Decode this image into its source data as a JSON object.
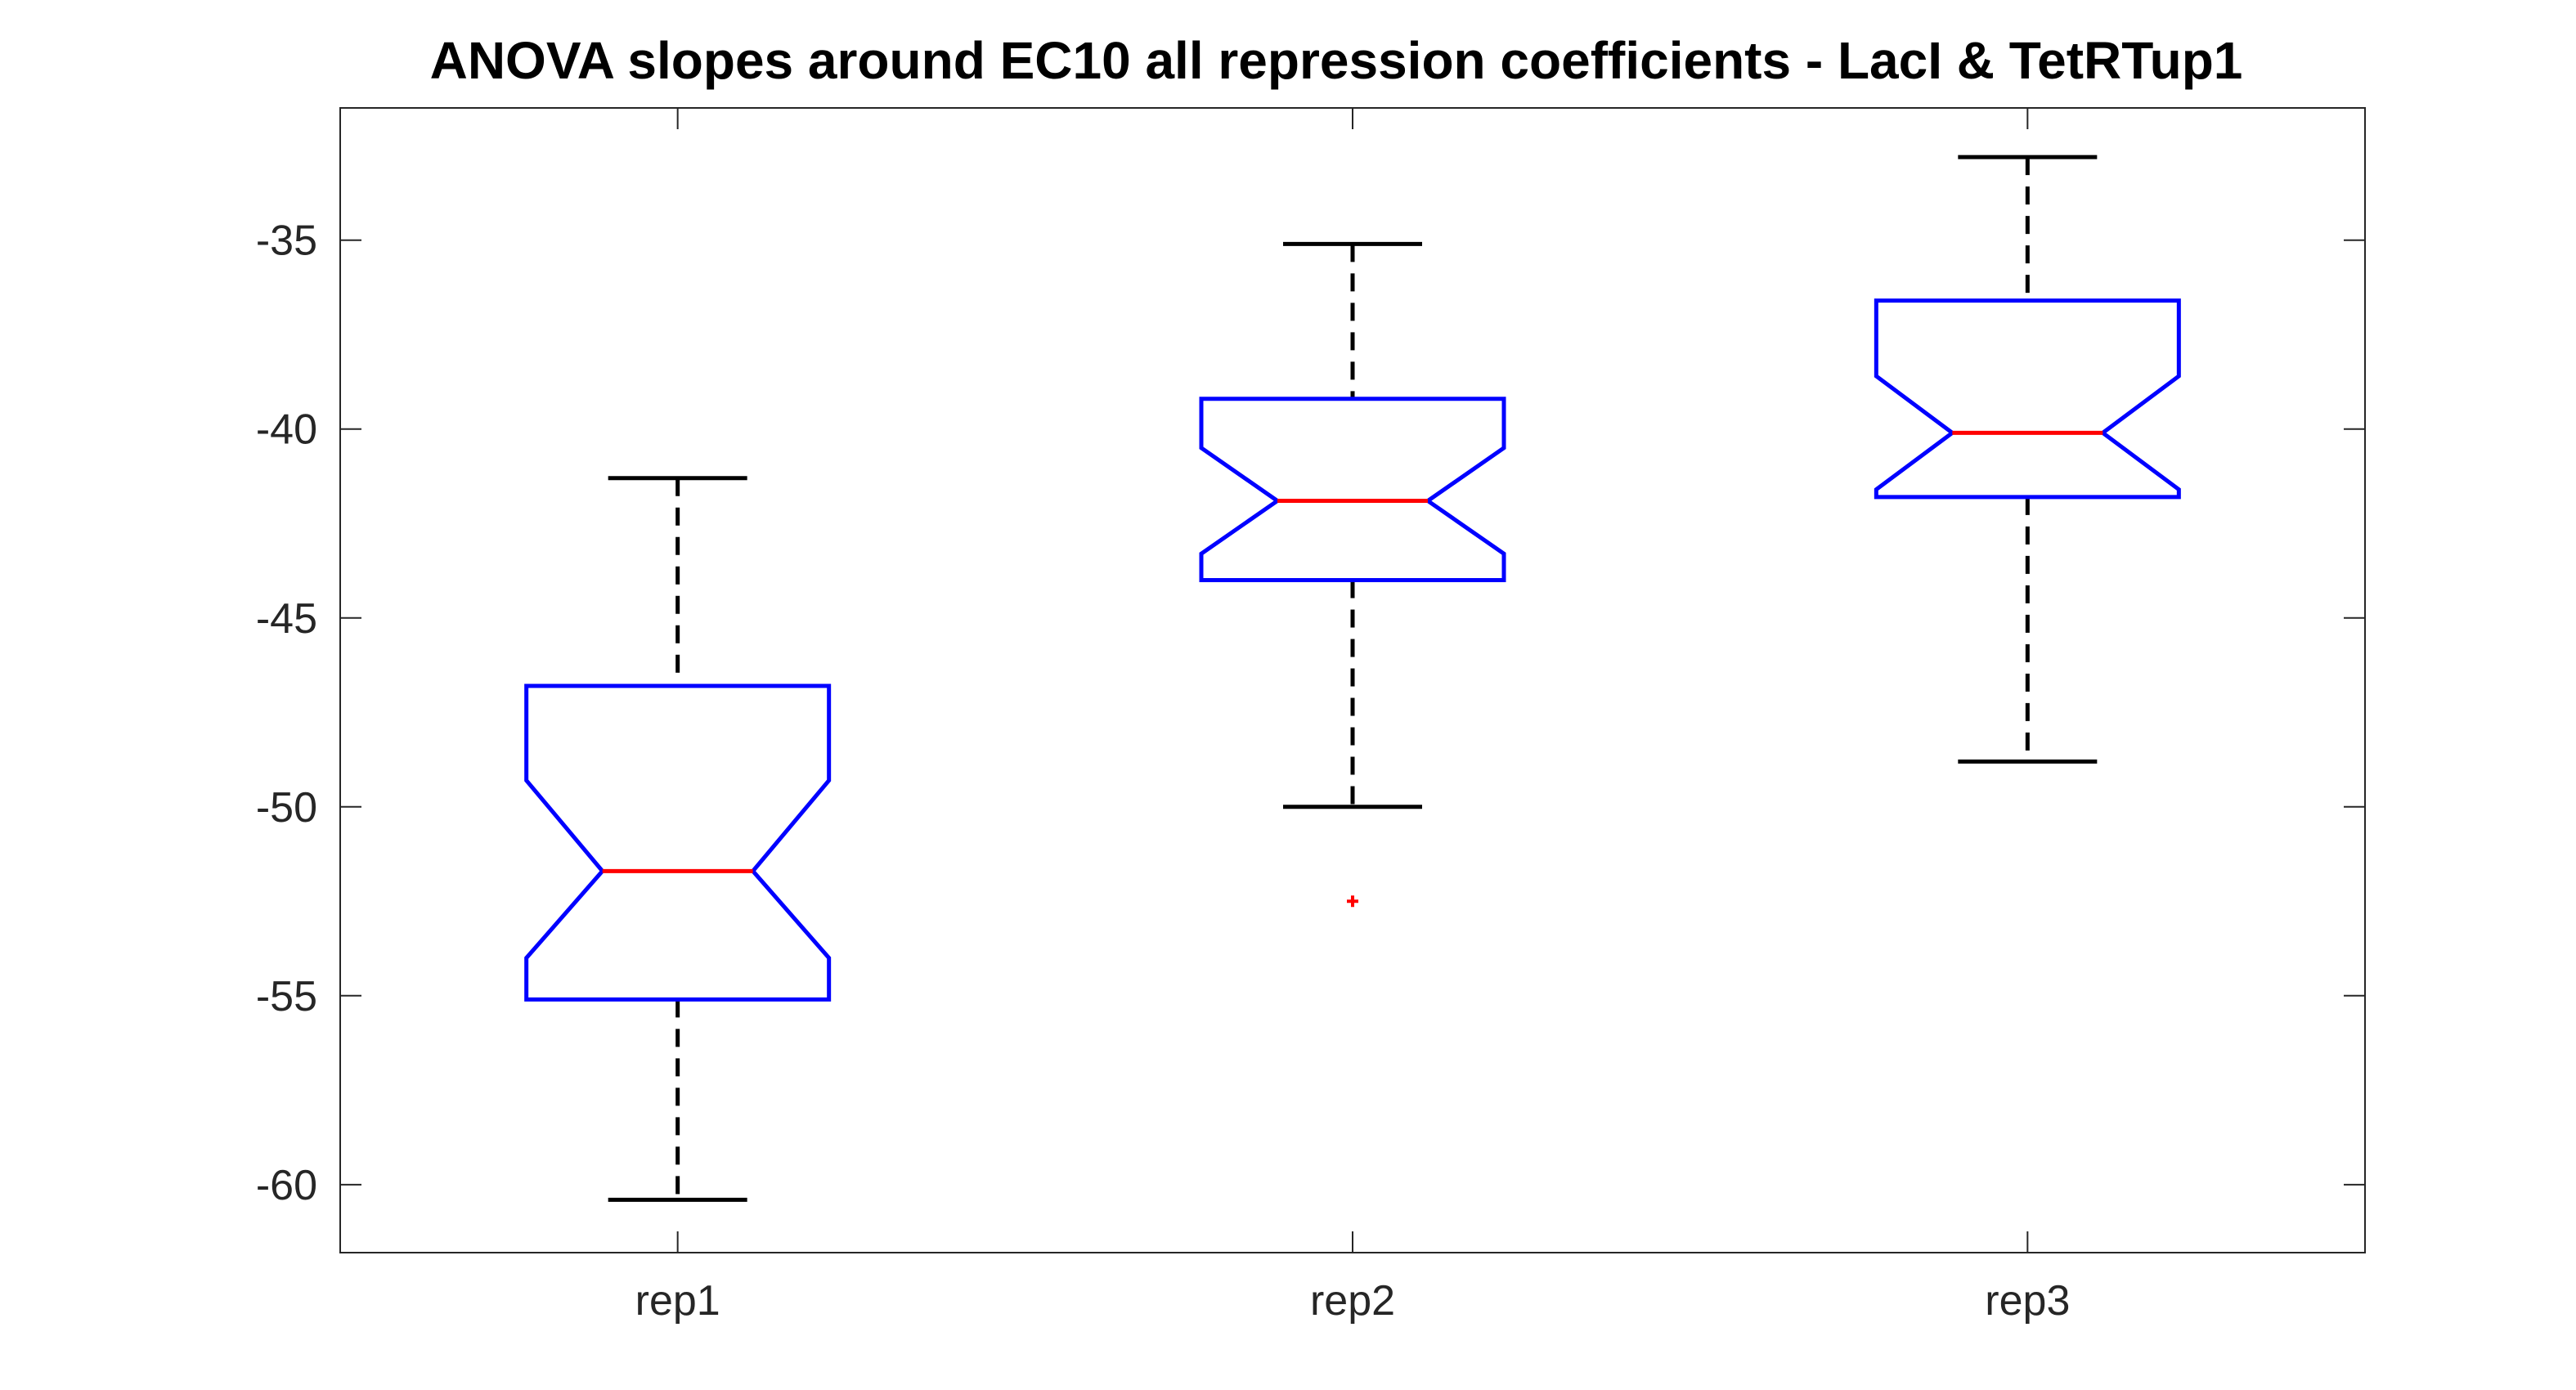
{
  "chart_data": {
    "type": "box",
    "title": "ANOVA slopes around EC10 all repression coefficients - LacI & TetRTup1",
    "xlabel": "",
    "ylabel": "",
    "ylim": [
      -61.8,
      -31.5
    ],
    "yticks": [
      -35,
      -40,
      -45,
      -50,
      -55,
      -60
    ],
    "ytick_labels": [
      "-35",
      "-40",
      "-45",
      "-50",
      "-55",
      "-60"
    ],
    "categories": [
      "rep1",
      "rep2",
      "rep3"
    ],
    "notched": true,
    "grid": false,
    "series": [
      {
        "category": "rep1",
        "whisker_high": -41.3,
        "q3": -46.8,
        "notch_high": -49.3,
        "median": -51.7,
        "notch_low": -54.0,
        "q1": -55.1,
        "whisker_low": -60.4,
        "outliers": []
      },
      {
        "category": "rep2",
        "whisker_high": -35.1,
        "q3": -39.2,
        "notch_high": -40.5,
        "median": -41.9,
        "notch_low": -43.3,
        "q1": -44.0,
        "whisker_low": -50.0,
        "outliers": [
          -52.5
        ]
      },
      {
        "category": "rep3",
        "whisker_high": -32.8,
        "q3": -36.6,
        "notch_high": -38.6,
        "median": -40.1,
        "notch_low": -41.6,
        "q1": -41.8,
        "whisker_low": -48.8,
        "outliers": []
      }
    ],
    "colors": {
      "box": "#0000ff",
      "median": "#ff0000",
      "whisker": "#000000",
      "outlier": "#ff0000",
      "axes": "#262626"
    }
  }
}
